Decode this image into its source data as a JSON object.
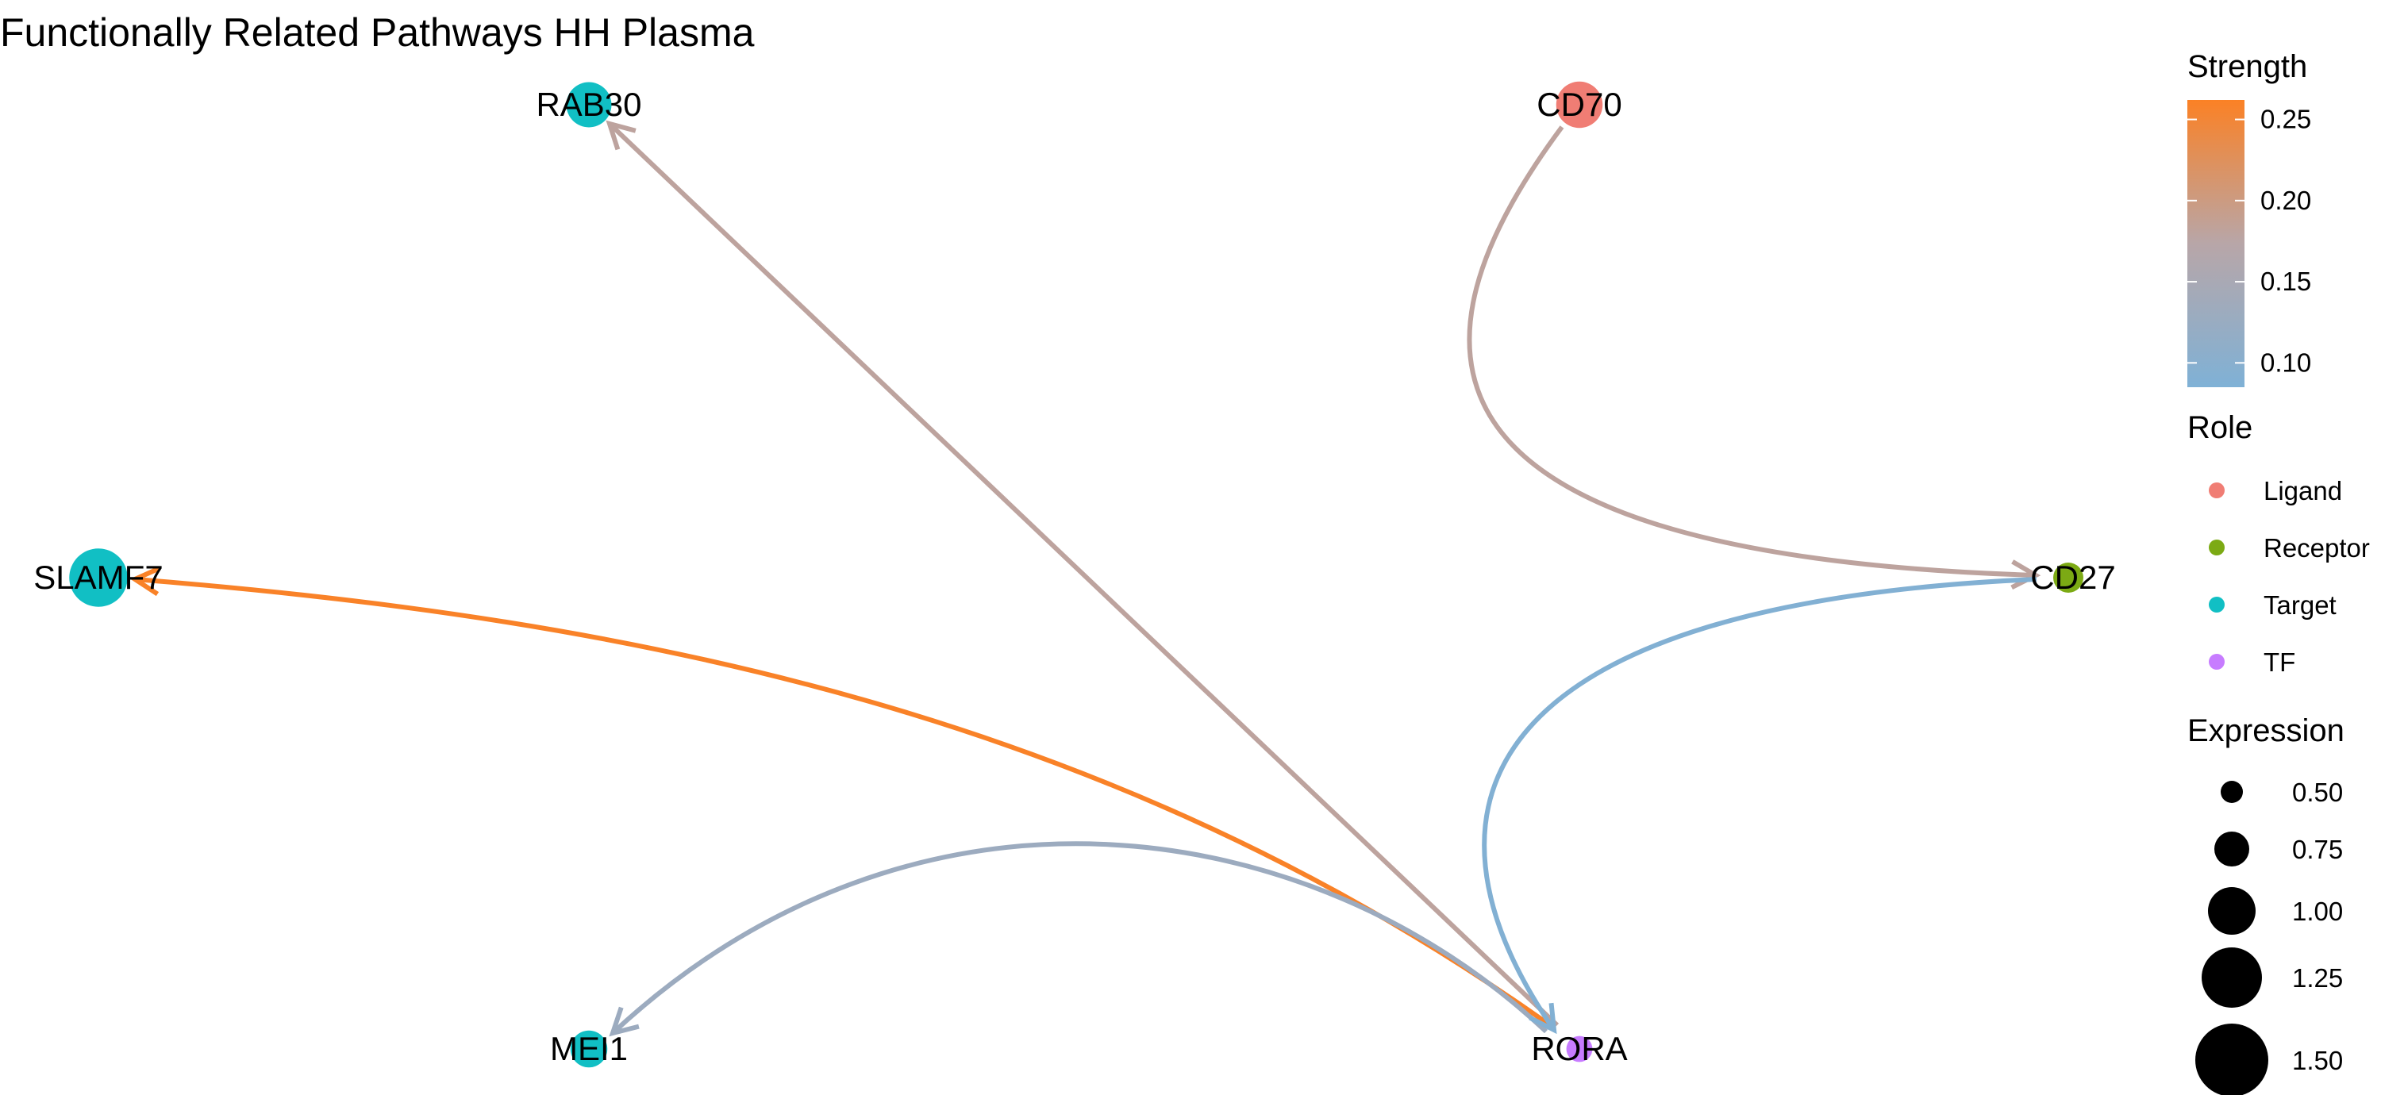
{
  "title": "Functionally Related Pathways HH Plasma",
  "nodes": [
    {
      "id": "RAB30",
      "label": "RAB30",
      "role": "Target",
      "expression": 0.9
    },
    {
      "id": "CD70",
      "label": "CD70",
      "role": "Ligand",
      "expression": 0.95
    },
    {
      "id": "SLAMF7",
      "label": "SLAMF7",
      "role": "Target",
      "expression": 1.5
    },
    {
      "id": "CD27",
      "label": "CD27",
      "role": "Receptor",
      "expression": 0.4
    },
    {
      "id": "MEI1",
      "label": "MEI1",
      "role": "Target",
      "expression": 0.6
    },
    {
      "id": "RORA",
      "label": "RORA",
      "role": "TF",
      "expression": 0.3
    }
  ],
  "edges": [
    {
      "from": "CD70",
      "to": "CD27",
      "strength": 0.18
    },
    {
      "from": "RORA",
      "to": "RAB30",
      "strength": 0.18
    },
    {
      "from": "RORA",
      "to": "SLAMF7",
      "strength": 0.26
    },
    {
      "from": "RORA",
      "to": "MEI1",
      "strength": 0.13
    },
    {
      "from": "CD27",
      "to": "RORA",
      "strength": 0.09
    }
  ],
  "legend": {
    "strength": {
      "title": "Strength",
      "ticks": [
        "0.25",
        "0.20",
        "0.15",
        "0.10"
      ],
      "min": 0.085,
      "max": 0.262,
      "color_low": "#7FB1D6",
      "color_mid": "#B8A6A8",
      "color_high": "#FB8125"
    },
    "role": {
      "title": "Role",
      "items": [
        {
          "label": "Ligand",
          "color": "#F07D74"
        },
        {
          "label": "Receptor",
          "color": "#7CAA14"
        },
        {
          "label": "Target",
          "color": "#11BFC4"
        },
        {
          "label": "TF",
          "color": "#C77CFF"
        }
      ]
    },
    "expression": {
      "title": "Expression",
      "items": [
        {
          "label": "0.50",
          "value": 0.5
        },
        {
          "label": "0.75",
          "value": 0.75
        },
        {
          "label": "1.00",
          "value": 1.0
        },
        {
          "label": "1.25",
          "value": 1.25
        },
        {
          "label": "1.50",
          "value": 1.5
        }
      ]
    }
  }
}
